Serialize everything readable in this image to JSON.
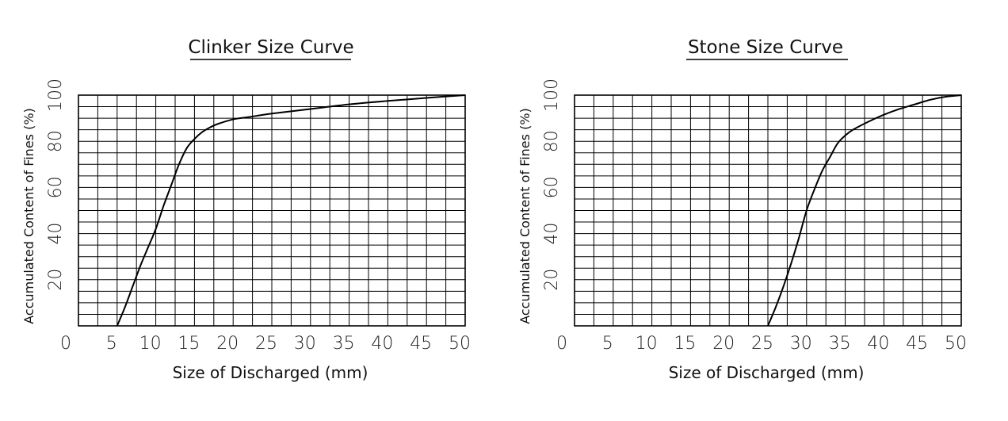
{
  "chart_data": [
    {
      "type": "line",
      "title": "Clinker Size Curve",
      "xlabel": "Size of Discharged (mm)",
      "ylabel": "Accumulated Content of Fines (%)",
      "xlim": [
        0,
        50
      ],
      "ylim": [
        0,
        100
      ],
      "xticks": [
        "0",
        "5",
        "10",
        "15",
        "20",
        "25",
        "30",
        "35",
        "40",
        "45",
        "50"
      ],
      "yticks": [
        "20",
        "40",
        "60",
        "80",
        "100"
      ],
      "grid": true,
      "series": [
        {
          "x": [
            5,
            6,
            7,
            8,
            9,
            10,
            11,
            12,
            13,
            14,
            15,
            16,
            17,
            18,
            20,
            22,
            25,
            30,
            35,
            40,
            45,
            50
          ],
          "y": [
            0,
            8,
            17,
            26,
            34,
            42,
            52,
            61,
            70,
            77,
            81,
            84,
            86,
            87.5,
            89.5,
            90.5,
            92,
            94,
            96,
            97.5,
            98.8,
            100
          ]
        }
      ]
    },
    {
      "type": "line",
      "title": "Stone Size Curve",
      "xlabel": "Size of Discharged (mm)",
      "ylabel": "Accumulated Content of Fines (%)",
      "xlim": [
        0,
        50
      ],
      "ylim": [
        0,
        100
      ],
      "xticks": [
        "0",
        "5",
        "10",
        "15",
        "20",
        "25",
        "30",
        "35",
        "40",
        "45",
        "50"
      ],
      "yticks": [
        "20",
        "40",
        "60",
        "80",
        "100"
      ],
      "grid": true,
      "series": [
        {
          "x": [
            25,
            26,
            27,
            28,
            29,
            30,
            31,
            32,
            33,
            34,
            35,
            36,
            38,
            40,
            42,
            44,
            46,
            48,
            50
          ],
          "y": [
            0,
            8,
            17,
            27,
            38,
            50,
            59,
            67,
            73,
            79,
            82.5,
            85,
            88.5,
            91.5,
            94,
            96,
            98,
            99.3,
            100
          ]
        }
      ]
    }
  ]
}
